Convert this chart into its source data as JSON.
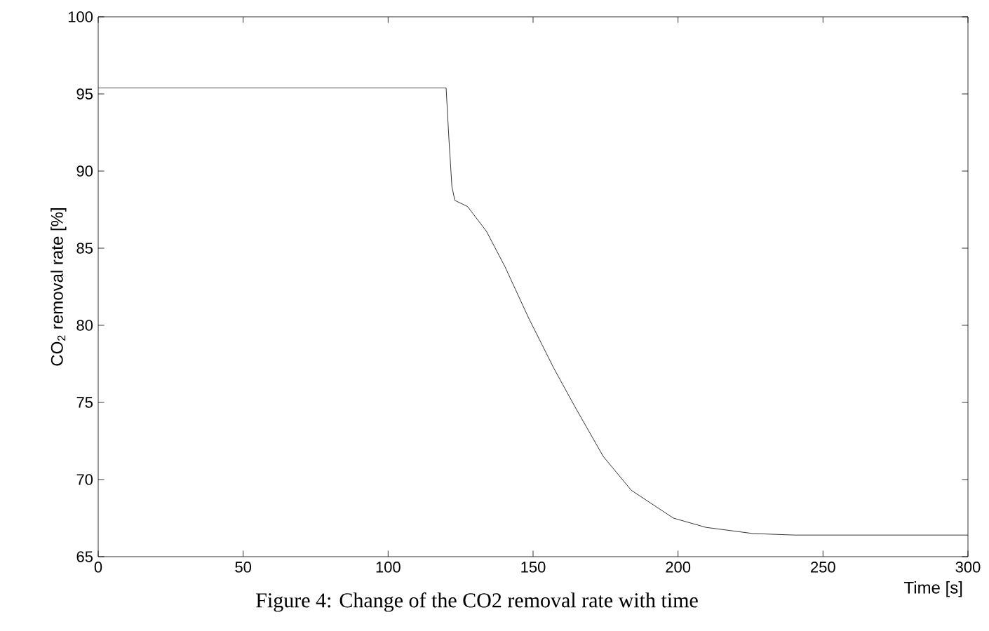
{
  "chart_data": {
    "type": "line",
    "xlabel": "Time [s]",
    "ylabel": "CO$_{2}$ removal rate [%]",
    "xlim": [
      0,
      300
    ],
    "ylim": [
      65,
      100
    ],
    "xticks": [
      0,
      50,
      100,
      150,
      200,
      250,
      300
    ],
    "yticks": [
      65,
      70,
      75,
      80,
      85,
      90,
      95,
      100
    ],
    "grid": false,
    "marker": "none",
    "line_style": "solid",
    "annotations": [
      "Figure 4: Change of the CO2 removal rate with time"
    ],
    "series": [
      {
        "color": "#000000",
        "x": [
          0,
          120,
          121,
          122,
          123,
          127.4,
          133.9,
          140.3,
          148.4,
          157.2,
          164.5,
          174.2,
          183.9,
          198.4,
          209.6,
          225.8,
          240.3,
          300
        ],
        "values": [
          95.4,
          95.4,
          92,
          89,
          88.1,
          87.7,
          86.1,
          83.8,
          80.5,
          77.2,
          74.7,
          71.5,
          69.3,
          67.5,
          66.9,
          66.5,
          66.4,
          66.4
        ]
      }
    ]
  }
}
